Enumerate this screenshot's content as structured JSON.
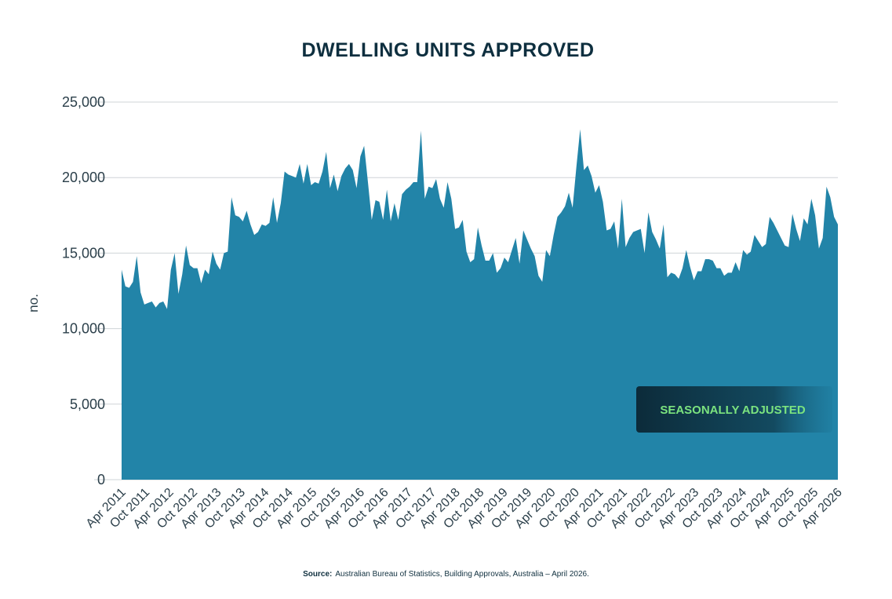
{
  "chart_data": {
    "type": "area",
    "title": "DWELLING UNITS APPROVED",
    "ylabel": "no.",
    "xlabel": "",
    "ylim": [
      0,
      25000
    ],
    "yticks": [
      0,
      5000,
      10000,
      15000,
      20000,
      25000
    ],
    "ytick_labels": [
      "0",
      "5,000",
      "10,000",
      "15,000",
      "20,000",
      "25,000"
    ],
    "grid": "horizontal",
    "x_start": "Apr 2011",
    "x_end": "Apr 2026",
    "xtick_labels": [
      "Apr 2011",
      "Oct 2011",
      "Apr 2012",
      "Oct 2012",
      "Apr 2013",
      "Oct 2013",
      "Apr 2014",
      "Oct 2014",
      "Apr 2015",
      "Oct 2015",
      "Apr 2016",
      "Oct 2016",
      "Apr 2017",
      "Oct 2017",
      "Apr 2018",
      "Oct 2018",
      "Apr 2019",
      "Oct 2019",
      "Apr 2020",
      "Oct 2020",
      "Apr 2021",
      "Oct 2021",
      "Apr 2022",
      "Oct 2022",
      "Apr 2023",
      "Oct 2023",
      "Apr 2024",
      "Oct 2024",
      "Apr 2025",
      "Oct 2025",
      "Apr 2026"
    ],
    "fill_color": "#2284a8",
    "series": [
      {
        "values": [
          13900,
          12800,
          12700,
          13100,
          14800,
          12400,
          11600,
          11700,
          11800,
          11400,
          11700,
          11800,
          11300,
          13900,
          15000,
          12300,
          13600,
          15500,
          14200,
          14000,
          14000,
          13000,
          13900,
          13600,
          15100,
          14300,
          13900,
          15000,
          15100,
          18700,
          17500,
          17400,
          17100,
          17800,
          16900,
          16200,
          16400,
          16900,
          16800,
          17000,
          18700,
          17000,
          18300,
          20400,
          20200,
          20100,
          20000,
          20900,
          19600,
          20900,
          19500,
          19700,
          19600,
          20400,
          21700,
          19300,
          20200,
          19100,
          20100,
          20600,
          20900,
          20500,
          19300,
          21400,
          22100,
          19700,
          17200,
          18500,
          18400,
          17200,
          19200,
          17100,
          18300,
          17200,
          18900,
          19200,
          19400,
          19700,
          19700,
          23100,
          18600,
          19400,
          19300,
          19900,
          18600,
          18000,
          19700,
          18600,
          16600,
          16700,
          17200,
          15100,
          14400,
          14600,
          16700,
          15500,
          14500,
          14500,
          15000,
          13700,
          14000,
          14700,
          14400,
          15200,
          16000,
          14300,
          16500,
          15900,
          15300,
          14800,
          13500,
          13100,
          15200,
          14800,
          16200,
          17400,
          17700,
          18100,
          19000,
          18000,
          20700,
          23200,
          20500,
          20800,
          20100,
          19000,
          19500,
          18400,
          16500,
          16600,
          17100,
          15300,
          18600,
          15400,
          16000,
          16400,
          16500,
          16600,
          15000,
          17700,
          16400,
          15900,
          15300,
          16900,
          13400,
          13700,
          13600,
          13300,
          14000,
          15200,
          14100,
          13200,
          13800,
          13800,
          14600,
          14600,
          14500,
          14000,
          14000,
          13500,
          13700,
          13700,
          14400,
          13800,
          15200,
          14900,
          15100,
          16200,
          15800,
          15400,
          15600,
          17400,
          17000,
          16500,
          16000,
          15500,
          15400,
          17600,
          16600,
          15800,
          17300,
          16900,
          18600,
          17500,
          15300,
          16000,
          19400,
          18700,
          17400,
          16900
        ]
      }
    ],
    "annotation": "SEASONALLY ADJUSTED"
  },
  "source": {
    "label": "Source:",
    "text": "Australian Bureau of Statistics, Building Approvals, Australia – April 2026."
  },
  "colors": {
    "area": "#2284a8",
    "grid": "#cfd4d7",
    "badge_bg_start": "#0c2b3a",
    "badge_bg_end": "#1a6f8e",
    "badge_text": "#7be37f",
    "title": "#0e2f3f"
  }
}
